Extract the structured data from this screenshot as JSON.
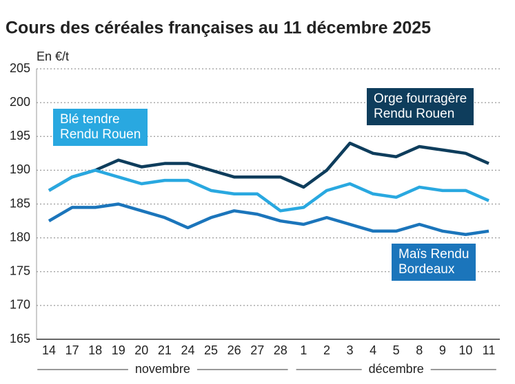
{
  "chart_data": {
    "type": "line",
    "title": "Cours des céréales françaises au 11 décembre 2025",
    "y_label": "En €/t",
    "categories": [
      "14",
      "17",
      "18",
      "19",
      "20",
      "21",
      "24",
      "25",
      "26",
      "27",
      "28",
      "1",
      "2",
      "3",
      "4",
      "5",
      "8",
      "9",
      "10",
      "11"
    ],
    "x_groups": [
      "novembre",
      "décembre"
    ],
    "ylim": [
      165,
      205
    ],
    "yticks": [
      165,
      170,
      175,
      180,
      185,
      190,
      195,
      200,
      205
    ],
    "grid": true,
    "series": [
      {
        "name": "Orge fourragère\nRendu Rouen",
        "color": "#0e3d5c",
        "values": [
          187,
          189,
          190,
          191.5,
          190.5,
          191,
          191,
          190,
          189,
          189,
          189,
          187.5,
          190,
          194,
          192.5,
          192,
          193.5,
          193,
          192.5,
          191
        ]
      },
      {
        "name": "Maïs Rendu\nBordeaux",
        "color": "#1b75bb",
        "values": [
          182.5,
          184.5,
          184.5,
          185,
          184,
          183,
          181.5,
          183,
          184,
          183.5,
          182.5,
          182,
          183,
          182,
          181,
          181,
          182,
          181,
          180.5,
          181
        ]
      },
      {
        "name": "Blé tendre\nRendu Rouen",
        "color": "#29a8e0",
        "values": [
          187,
          189,
          190,
          189,
          188,
          188.5,
          188.5,
          187,
          186.5,
          186.5,
          184,
          184.5,
          187,
          188,
          186.5,
          186,
          187.5,
          187,
          187,
          185.5
        ]
      }
    ]
  }
}
